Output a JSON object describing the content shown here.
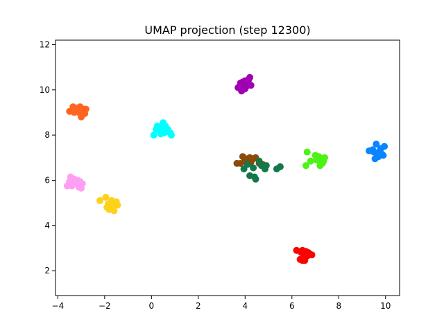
{
  "chart_data": {
    "type": "scatter",
    "title": "UMAP projection (step 12300)",
    "xlabel": "",
    "ylabel": "",
    "xlim": [
      -4.1,
      10.6
    ],
    "ylim": [
      0.9,
      12.2
    ],
    "xticks": [
      -4,
      -2,
      0,
      2,
      4,
      6,
      8,
      10
    ],
    "yticks": [
      2,
      4,
      6,
      8,
      10,
      12
    ],
    "grid": false,
    "legend": "none",
    "series": [
      {
        "color": "#ff6421",
        "points": [
          [
            -3.5,
            9.05
          ],
          [
            -3.35,
            9.25
          ],
          [
            -3.25,
            9.1
          ],
          [
            -3.15,
            9.2
          ],
          [
            -3.05,
            9.25
          ],
          [
            -2.9,
            9.15
          ],
          [
            -2.8,
            9.15
          ],
          [
            -3.1,
            9.0
          ],
          [
            -3.3,
            9.0
          ],
          [
            -2.95,
            8.95
          ],
          [
            -2.85,
            8.95
          ],
          [
            -3.0,
            8.8
          ]
        ]
      },
      {
        "color": "#00ffff",
        "points": [
          [
            0.1,
            8.0
          ],
          [
            0.2,
            8.25
          ],
          [
            0.25,
            8.4
          ],
          [
            0.35,
            8.2
          ],
          [
            0.45,
            8.35
          ],
          [
            0.5,
            8.55
          ],
          [
            0.55,
            8.1
          ],
          [
            0.6,
            8.4
          ],
          [
            0.7,
            8.25
          ],
          [
            0.8,
            8.1
          ],
          [
            0.85,
            8.0
          ],
          [
            0.4,
            8.05
          ]
        ]
      },
      {
        "color": "#a000b4",
        "points": [
          [
            3.7,
            10.1
          ],
          [
            3.8,
            10.3
          ],
          [
            3.85,
            9.95
          ],
          [
            3.95,
            10.05
          ],
          [
            4.0,
            10.4
          ],
          [
            4.05,
            10.15
          ],
          [
            4.1,
            10.25
          ],
          [
            4.15,
            10.45
          ],
          [
            4.2,
            10.55
          ],
          [
            4.25,
            10.2
          ],
          [
            3.9,
            10.35
          ],
          [
            4.0,
            10.05
          ]
        ]
      },
      {
        "color": "#ff9ff3",
        "points": [
          [
            -3.6,
            5.75
          ],
          [
            -3.5,
            5.95
          ],
          [
            -3.45,
            6.15
          ],
          [
            -3.35,
            5.85
          ],
          [
            -3.3,
            6.05
          ],
          [
            -3.2,
            5.9
          ],
          [
            -3.15,
            6.0
          ],
          [
            -3.1,
            5.7
          ],
          [
            -3.05,
            5.95
          ],
          [
            -2.95,
            5.85
          ],
          [
            -3.0,
            5.65
          ],
          [
            -3.4,
            5.75
          ]
        ]
      },
      {
        "color": "#ffd21a",
        "points": [
          [
            -2.2,
            5.1
          ],
          [
            -1.95,
            5.25
          ],
          [
            -1.85,
            4.95
          ],
          [
            -1.8,
            4.7
          ],
          [
            -1.75,
            5.0
          ],
          [
            -1.65,
            4.85
          ],
          [
            -1.6,
            4.65
          ],
          [
            -1.55,
            4.95
          ],
          [
            -1.5,
            5.05
          ],
          [
            -1.45,
            4.9
          ],
          [
            -1.7,
            5.1
          ],
          [
            -1.9,
            4.8
          ]
        ]
      },
      {
        "color": "#8a4b08",
        "points": [
          [
            3.65,
            6.75
          ],
          [
            3.8,
            6.75
          ],
          [
            3.9,
            7.05
          ],
          [
            4.0,
            6.85
          ],
          [
            4.1,
            6.95
          ],
          [
            4.2,
            7.0
          ],
          [
            4.25,
            6.8
          ],
          [
            4.35,
            6.95
          ],
          [
            4.45,
            7.0
          ],
          [
            4.6,
            6.75
          ],
          [
            4.75,
            6.7
          ],
          [
            4.9,
            6.65
          ]
        ]
      },
      {
        "color": "#13784a",
        "points": [
          [
            3.95,
            6.5
          ],
          [
            4.2,
            6.2
          ],
          [
            4.35,
            6.55
          ],
          [
            4.45,
            6.05
          ],
          [
            4.6,
            6.85
          ],
          [
            4.85,
            6.5
          ],
          [
            4.9,
            6.65
          ],
          [
            5.35,
            6.5
          ],
          [
            5.5,
            6.6
          ],
          [
            4.4,
            6.15
          ],
          [
            4.7,
            6.65
          ],
          [
            4.1,
            6.7
          ]
        ]
      },
      {
        "color": "#4cf314",
        "points": [
          [
            6.6,
            6.65
          ],
          [
            6.65,
            7.25
          ],
          [
            6.8,
            6.85
          ],
          [
            7.0,
            7.1
          ],
          [
            7.1,
            6.95
          ],
          [
            7.15,
            7.05
          ],
          [
            7.2,
            6.65
          ],
          [
            7.25,
            6.85
          ],
          [
            7.3,
            6.75
          ],
          [
            7.4,
            7.0
          ],
          [
            7.35,
            6.85
          ],
          [
            7.05,
            6.9
          ]
        ]
      },
      {
        "color": "#0a84ff",
        "points": [
          [
            9.3,
            7.3
          ],
          [
            9.45,
            7.35
          ],
          [
            9.55,
            6.95
          ],
          [
            9.6,
            7.6
          ],
          [
            9.65,
            7.15
          ],
          [
            9.75,
            7.3
          ],
          [
            9.8,
            7.4
          ],
          [
            9.85,
            7.15
          ],
          [
            9.9,
            7.1
          ],
          [
            9.95,
            7.5
          ],
          [
            9.7,
            7.05
          ],
          [
            9.5,
            7.25
          ]
        ]
      },
      {
        "color": "#ff0000",
        "points": [
          [
            6.2,
            2.9
          ],
          [
            6.35,
            2.5
          ],
          [
            6.4,
            2.8
          ],
          [
            6.45,
            2.9
          ],
          [
            6.5,
            2.75
          ],
          [
            6.55,
            2.45
          ],
          [
            6.6,
            2.85
          ],
          [
            6.65,
            2.65
          ],
          [
            6.7,
            2.8
          ],
          [
            6.75,
            2.75
          ],
          [
            6.85,
            2.7
          ],
          [
            6.45,
            2.45
          ]
        ]
      }
    ]
  }
}
